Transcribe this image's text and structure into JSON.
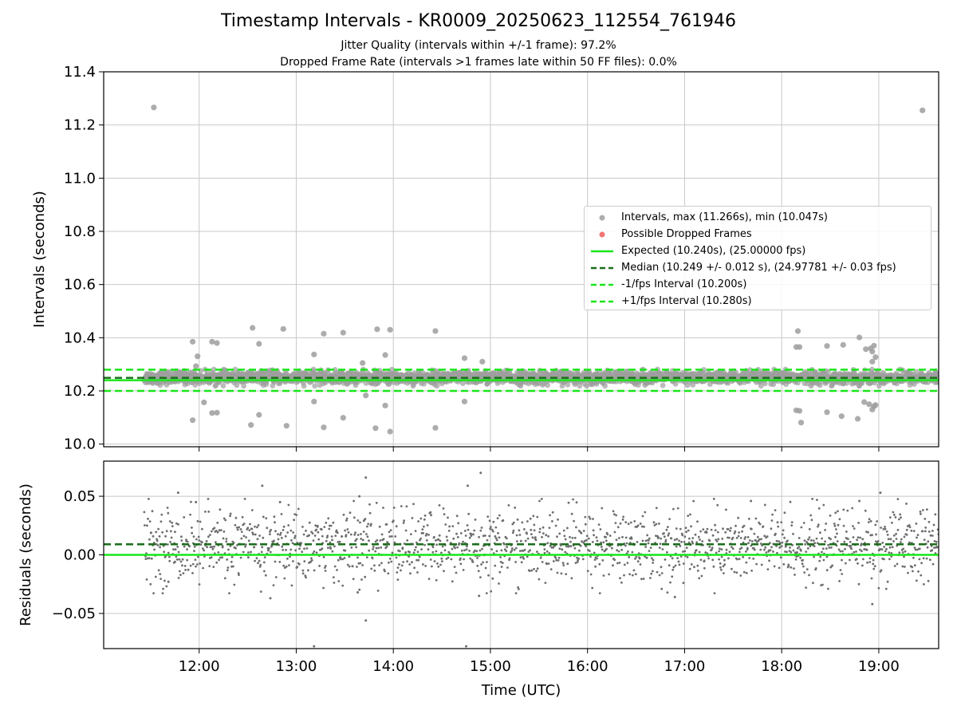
{
  "title": "Timestamp Intervals - KR0009_20250623_112554_761946",
  "subtitle_lines": [
    "Jitter Quality (intervals within +/-1 frame): 97.2%",
    "Dropped Frame Rate (intervals >1 frames late within 50 FF files): 0.0%"
  ],
  "colors": {
    "points": "#9e9e9e",
    "dropped": "#f05a5a",
    "expected": "#19e619",
    "median": "#1a6e1a",
    "fps_bounds": "#19e619",
    "grid": "#c8c8c8"
  },
  "legend": {
    "placement": "right",
    "items": [
      {
        "label": "Intervals, max (11.266s), min (10.047s)",
        "kind": "marker",
        "color": "#9e9e9e"
      },
      {
        "label": "Possible Dropped Frames",
        "kind": "marker",
        "color": "#f05a5a"
      },
      {
        "label": "Expected (10.240s), (25.00000 fps)",
        "kind": "line",
        "color": "#19e619"
      },
      {
        "label": "Median (10.249 +/- 0.012 s), (24.97781 +/- 0.03 fps)",
        "kind": "dashed",
        "color": "#1a6e1a"
      },
      {
        "label": "-1/fps Interval (10.200s)",
        "kind": "dashed",
        "color": "#19e619"
      },
      {
        "label": "+1/fps Interval (10.280s)",
        "kind": "dashed",
        "color": "#19e619"
      }
    ]
  },
  "chart_data": [
    {
      "type": "scatter",
      "ylabel": "Intervals (seconds)",
      "xlabel": "",
      "xlim": [
        "11:01",
        "19:37"
      ],
      "ylim": [
        9.99,
        11.4
      ],
      "yticks": [
        "10.0",
        "10.2",
        "10.4",
        "10.6",
        "10.8",
        "11.0",
        "11.2",
        "11.4"
      ],
      "x_tick_labels_shown": false,
      "grid": true,
      "data_span": [
        "11:26",
        "19:37"
      ],
      "bulk_band": [
        10.225,
        10.275
      ],
      "reference_lines": {
        "expected": 10.24,
        "median": 10.249,
        "minus_1_fps": 10.2,
        "plus_1_fps": 10.28
      },
      "outliers": [
        [
          "11:32",
          11.266
        ],
        [
          "19:27",
          11.255
        ],
        [
          "11:56",
          10.385
        ],
        [
          "12:08",
          10.385
        ],
        [
          "12:11",
          10.38
        ],
        [
          "11:59",
          10.33
        ],
        [
          "11:58",
          10.293
        ],
        [
          "12:33",
          10.437
        ],
        [
          "12:37",
          10.377
        ],
        [
          "12:52",
          10.433
        ],
        [
          "13:11",
          10.337
        ],
        [
          "13:17",
          10.415
        ],
        [
          "13:29",
          10.419
        ],
        [
          "13:41",
          10.305
        ],
        [
          "13:50",
          10.432
        ],
        [
          "13:55",
          10.335
        ],
        [
          "13:58",
          10.43
        ],
        [
          "14:26",
          10.425
        ],
        [
          "14:44",
          10.323
        ],
        [
          "14:55",
          10.31
        ],
        [
          "11:56",
          10.09
        ],
        [
          "12:03",
          10.157
        ],
        [
          "12:08",
          10.117
        ],
        [
          "12:11",
          10.118
        ],
        [
          "12:32",
          10.072
        ],
        [
          "12:37",
          10.11
        ],
        [
          "12:54",
          10.069
        ],
        [
          "13:11",
          10.16
        ],
        [
          "13:17",
          10.063
        ],
        [
          "13:29",
          10.099
        ],
        [
          "13:43",
          10.183
        ],
        [
          "13:49",
          10.06
        ],
        [
          "13:55",
          10.145
        ],
        [
          "13:58",
          10.047
        ],
        [
          "14:26",
          10.061
        ],
        [
          "14:44",
          10.16
        ],
        [
          "18:09",
          10.365
        ],
        [
          "18:11",
          10.365
        ],
        [
          "18:10",
          10.425
        ],
        [
          "18:28",
          10.369
        ],
        [
          "18:38",
          10.373
        ],
        [
          "18:48",
          10.401
        ],
        [
          "18:52",
          10.357
        ],
        [
          "18:55",
          10.36
        ],
        [
          "18:56",
          10.348
        ],
        [
          "18:57",
          10.37
        ],
        [
          "18:58",
          10.327
        ],
        [
          "18:56",
          10.31
        ],
        [
          "18:09",
          10.127
        ],
        [
          "18:11",
          10.125
        ],
        [
          "18:12",
          10.081
        ],
        [
          "18:28",
          10.12
        ],
        [
          "18:37",
          10.105
        ],
        [
          "18:47",
          10.095
        ],
        [
          "18:51",
          10.158
        ],
        [
          "18:54",
          10.15
        ],
        [
          "18:56",
          10.13
        ],
        [
          "18:57",
          10.142
        ],
        [
          "18:58",
          10.147
        ]
      ]
    },
    {
      "type": "scatter",
      "ylabel": "Residuals (seconds)",
      "xlabel": "Time (UTC)",
      "xlim": [
        "11:01",
        "19:37"
      ],
      "ylim": [
        -0.08,
        0.08
      ],
      "yticks": [
        "−0.05",
        "0.00",
        "0.05"
      ],
      "xticks": [
        "12:00",
        "13:00",
        "14:00",
        "15:00",
        "16:00",
        "17:00",
        "18:00",
        "19:00"
      ],
      "grid": true,
      "data_span": [
        "11:26",
        "19:37"
      ],
      "bulk_band": [
        -0.025,
        0.04
      ],
      "reference_lines": {
        "expected": 0.0,
        "median": 0.009
      },
      "outliers": [
        [
          "11:47",
          0.053
        ],
        [
          "11:58",
          0.045
        ],
        [
          "12:39",
          0.059
        ],
        [
          "12:50",
          0.045
        ],
        [
          "13:43",
          0.066
        ],
        [
          "13:39",
          0.05
        ],
        [
          "14:46",
          0.059
        ],
        [
          "14:54",
          0.07
        ],
        [
          "19:01",
          0.053
        ],
        [
          "18:48",
          0.046
        ],
        [
          "17:41",
          0.046
        ],
        [
          "13:11",
          -0.078
        ],
        [
          "13:43",
          -0.056
        ],
        [
          "14:45",
          -0.078
        ],
        [
          "14:53",
          -0.035
        ],
        [
          "16:54",
          -0.036
        ],
        [
          "18:56",
          -0.042
        ],
        [
          "13:38",
          -0.032
        ],
        [
          "12:44",
          -0.037
        ],
        [
          "11:41",
          -0.023
        ]
      ]
    }
  ]
}
